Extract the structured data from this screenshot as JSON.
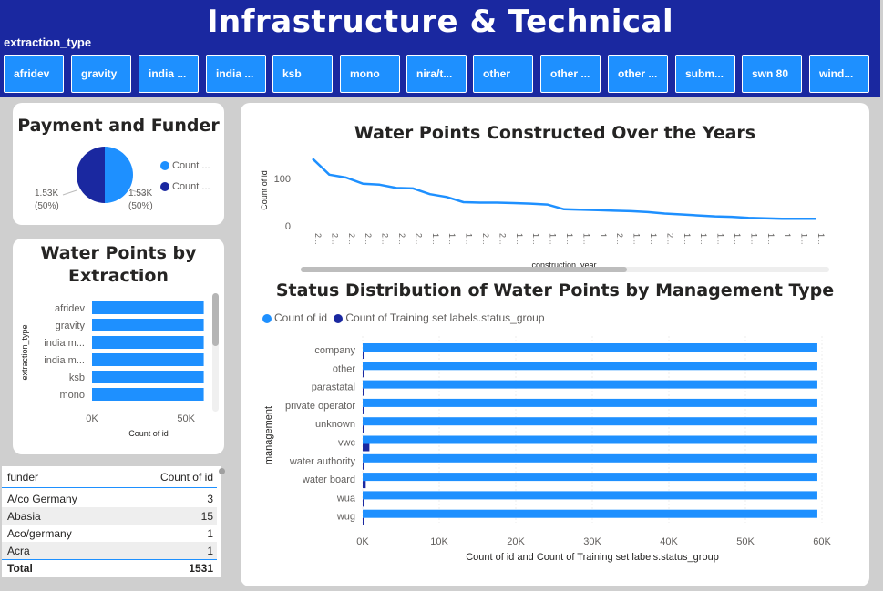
{
  "header": {
    "title": "Infrastructure & Technical",
    "slicer_label": "extraction_type",
    "slicer_items": [
      "afridev",
      "gravity",
      "india ...",
      "india ...",
      "ksb",
      "mono",
      "nira/t...",
      "other",
      "other ...",
      "other ...",
      "subm...",
      "swn 80",
      "wind..."
    ]
  },
  "payment_card": {
    "title": "Payment and Funder",
    "legend": [
      "Count ...",
      "Count ..."
    ],
    "label_left": [
      "1.53K",
      "(50%)"
    ],
    "label_right": [
      "1.53K",
      "(50%)"
    ]
  },
  "extraction_card": {
    "title_line1": "Water Points by",
    "title_line2": "Extraction",
    "ylabel": "extraction_type",
    "xlabel": "Count of id",
    "ticks": [
      "0K",
      "50K"
    ]
  },
  "funder_table": {
    "headers": [
      "funder",
      "Count of id"
    ],
    "rows": [
      {
        "funder": "A/co Germany",
        "count": "3"
      },
      {
        "funder": "Abasia",
        "count": "15"
      },
      {
        "funder": "Aco/germany",
        "count": "1"
      },
      {
        "funder": "Acra",
        "count": "1"
      }
    ],
    "total_label": "Total",
    "total_value": "1531"
  },
  "years_card": {
    "title": "Water Points Constructed Over the Years",
    "xlabel": "construction_year",
    "ylabel": "Count of id",
    "x_ticks": [
      "2...",
      "2...",
      "2...",
      "2...",
      "2...",
      "2...",
      "2...",
      "1...",
      "1...",
      "1...",
      "2...",
      "2...",
      "1...",
      "1...",
      "1...",
      "1...",
      "1...",
      "1...",
      "2...",
      "1...",
      "1...",
      "2...",
      "1...",
      "1...",
      "1...",
      "1...",
      "1...",
      "1...",
      "1...",
      "1...",
      "1..."
    ]
  },
  "status_card": {
    "title": "Status Distribution of Water Points by Management Type",
    "legend": [
      "Count of id",
      "Count of Training set labels.status_group"
    ],
    "ylabel": "management",
    "xlabel": "Count of id and Count of Training set labels.status_group"
  },
  "colors": {
    "accent": "#1e90ff",
    "dark": "#1a28a0",
    "header": "#1a28a0"
  },
  "chart_data": [
    {
      "type": "pie",
      "labels": [
        "Count ...",
        "Count ..."
      ],
      "values": [
        1531,
        1531
      ],
      "colors": [
        "#1e90ff",
        "#1a28a0"
      ],
      "legend": "right"
    },
    {
      "type": "bar",
      "orientation": "horizontal",
      "categories": [
        "afridev",
        "gravity",
        "india m...",
        "india m...",
        "ksb",
        "mono"
      ],
      "values": [
        59400,
        59400,
        59400,
        59400,
        59400,
        59400
      ],
      "xlim": [
        0,
        63000
      ],
      "xticks": [
        0,
        50000
      ],
      "xlabel": "Count of id",
      "ylabel": "extraction_type"
    },
    {
      "type": "line",
      "title": "Water Points Constructed Over the Years",
      "xlabel": "construction_year",
      "ylabel": "Count of id",
      "values": [
        142,
        108,
        102,
        89,
        87,
        80,
        79,
        67,
        61,
        50,
        49,
        49,
        48,
        47,
        45,
        35,
        34,
        33,
        32,
        31,
        29,
        26,
        24,
        22,
        20,
        19,
        17,
        16,
        15,
        15,
        15
      ],
      "ylim": [
        0,
        150
      ],
      "yticks": [
        0,
        100
      ]
    },
    {
      "type": "bar",
      "orientation": "horizontal",
      "title": "Status Distribution of Water Points by Management Type",
      "categories": [
        "company",
        "other",
        "parastatal",
        "private operator",
        "unknown",
        "vwc",
        "water authority",
        "water board",
        "wua",
        "wug"
      ],
      "series": [
        {
          "name": "Count of id",
          "values": [
            59400,
            59400,
            59400,
            59400,
            59400,
            59400,
            59400,
            59400,
            59400,
            59400
          ]
        },
        {
          "name": "Count of Training set labels.status_group",
          "values": [
            60,
            180,
            40,
            200,
            80,
            880,
            120,
            400,
            40,
            80
          ]
        }
      ],
      "xlim": [
        0,
        60000
      ],
      "xticks": [
        "0K",
        "10K",
        "20K",
        "30K",
        "40K",
        "50K",
        "60K"
      ],
      "xlabel": "Count of id and Count of Training set labels.status_group",
      "ylabel": "management",
      "legend": "top-left"
    }
  ]
}
